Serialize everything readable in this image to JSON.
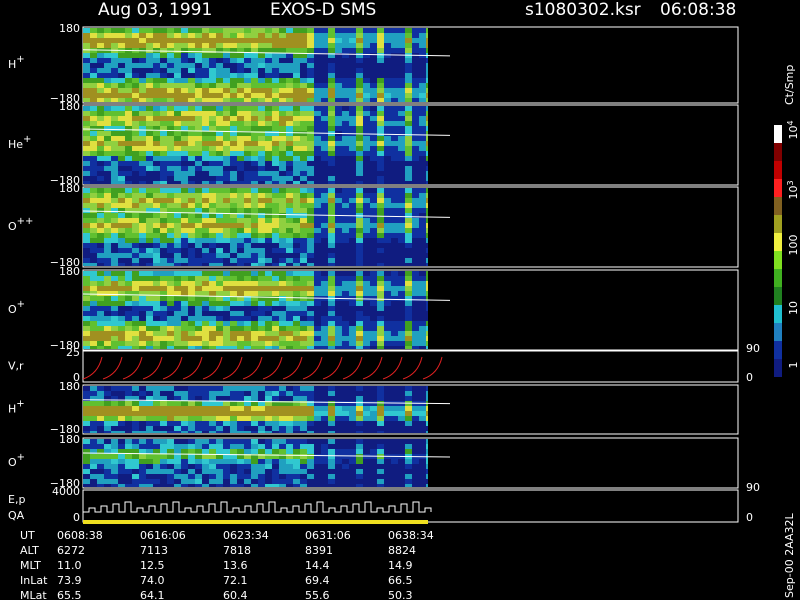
{
  "header": {
    "date": "Aug 03, 1991",
    "instrument": "EXOS-D SMS",
    "file": "s1080302.ksr",
    "time": "06:08:38"
  },
  "panels": [
    {
      "label": "H",
      "sup": "+",
      "ticks": [
        "180",
        "−180"
      ]
    },
    {
      "label": "He",
      "sup": "+",
      "ticks": [
        "180",
        "−180"
      ]
    },
    {
      "label": "O",
      "sup": "++",
      "ticks": [
        "180",
        "−180"
      ]
    },
    {
      "label": "O",
      "sup": "+",
      "ticks": [
        "180",
        "−180"
      ]
    },
    {
      "label": "V,r",
      "ticks": [
        "25",
        "0"
      ],
      "right_ticks": [
        "90",
        "0"
      ]
    },
    {
      "label": "H",
      "sup": "+",
      "ticks": [
        "180",
        "−180"
      ]
    },
    {
      "label": "O",
      "sup": "+",
      "ticks": [
        "180",
        "−180"
      ]
    },
    {
      "label": "E,p",
      "label2": "QA",
      "ticks": [
        "4000",
        "0"
      ],
      "right_ticks": [
        "90",
        "0"
      ]
    }
  ],
  "colorbar": {
    "unit": "Ct/Smp",
    "labels": [
      {
        "base": "10",
        "exp": "4"
      },
      {
        "base": "10",
        "exp": "3"
      },
      {
        "base": "100"
      },
      {
        "base": "10"
      },
      {
        "base": "1"
      }
    ]
  },
  "table": {
    "rows": [
      {
        "label": "UT",
        "values": [
          "0608:38",
          "0616:06",
          "0623:34",
          "0631:06",
          "0638:34"
        ]
      },
      {
        "label": "ALT",
        "values": [
          "6272",
          "7113",
          "7818",
          "8391",
          "8824"
        ]
      },
      {
        "label": "MLT",
        "values": [
          "11.0",
          "12.5",
          "13.6",
          "14.4",
          "14.9"
        ]
      },
      {
        "label": "InLat",
        "values": [
          "73.9",
          "74.0",
          "72.1",
          "69.4",
          "66.5"
        ]
      },
      {
        "label": "MLat",
        "values": [
          "65.5",
          "64.1",
          "60.4",
          "55.6",
          "50.3"
        ]
      }
    ]
  },
  "side_note": "Sep-00 2AA32L"
}
